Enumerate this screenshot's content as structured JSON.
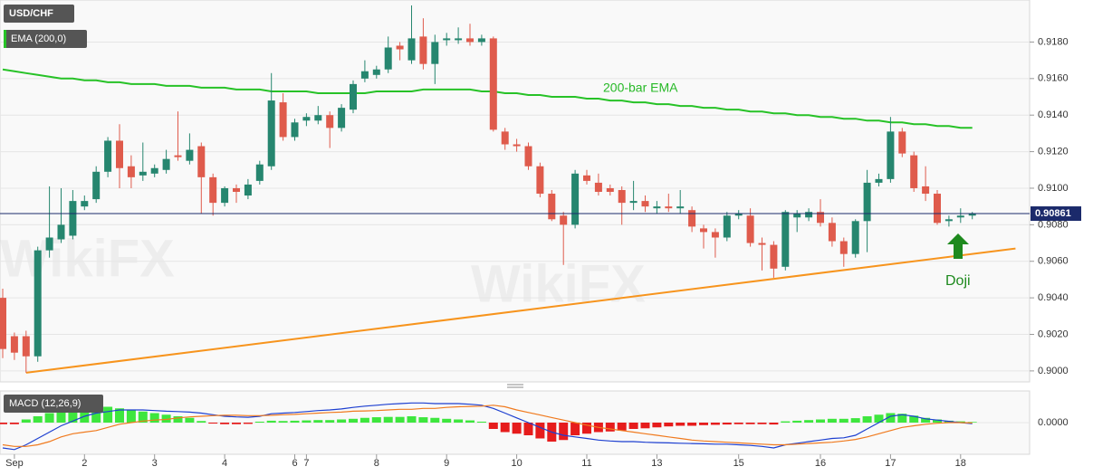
{
  "chart_data": {
    "type": "candlestick",
    "symbol": "USD/CHF",
    "indicator_label": "EMA (200,0)",
    "ema_annotation": "200-bar EMA",
    "doji_annotation": "Doji",
    "watermark": "WikiFX",
    "current_price": 0.90861,
    "categories": [
      null,
      "Sep",
      null,
      null,
      null,
      null,
      null,
      "2",
      null,
      null,
      null,
      null,
      null,
      "3",
      null,
      null,
      null,
      null,
      null,
      "4",
      null,
      null,
      null,
      null,
      null,
      "6",
      "7",
      null,
      null,
      null,
      null,
      null,
      "8",
      null,
      null,
      null,
      null,
      null,
      "9",
      null,
      null,
      null,
      null,
      null,
      "10",
      null,
      null,
      null,
      null,
      null,
      "11",
      null,
      null,
      null,
      null,
      null,
      "13",
      null,
      null,
      null,
      null,
      null,
      null,
      "15",
      null,
      null,
      null,
      null,
      null,
      null,
      "16",
      null,
      null,
      null,
      null,
      null,
      "17",
      null,
      null,
      null,
      null,
      null,
      "18",
      null
    ],
    "open": [
      0.904,
      0.9019,
      0.9019,
      0.9008,
      0.9066,
      0.9072,
      0.9074,
      0.909,
      0.9094,
      0.9109,
      0.9126,
      0.9112,
      0.9107,
      0.9108,
      0.911,
      0.9118,
      0.9115,
      0.9123,
      0.9106,
      0.9092,
      0.91,
      0.9096,
      0.9104,
      0.9112,
      0.9147,
      0.9128,
      0.9137,
      0.9137,
      0.914,
      0.9133,
      0.9143,
      0.916,
      0.9162,
      0.9165,
      0.9178,
      0.917,
      0.9183,
      0.9168,
      0.9181,
      0.9181,
      0.9182,
      0.918,
      0.9182,
      0.9131,
      0.9124,
      0.9123,
      0.9112,
      0.9097,
      0.9085,
      0.908,
      0.9107,
      0.9103,
      0.91,
      0.9099,
      0.9092,
      0.9093,
      0.9089,
      0.909,
      0.9089,
      0.9088,
      0.9078,
      0.9076,
      0.9073,
      0.9085,
      0.9085,
      0.907,
      0.9069,
      0.9057,
      0.9084,
      0.9084,
      0.9087,
      0.9081,
      0.9071,
      0.9064,
      0.9082,
      0.9103,
      0.9105,
      0.9131,
      0.9118,
      0.9101,
      0.9097,
      0.9082,
      0.9084,
      0.9085
    ],
    "high": [
      0.9045,
      0.9021,
      0.9022,
      0.9068,
      0.9101,
      0.91,
      0.9099,
      0.9096,
      0.9112,
      0.9128,
      0.9135,
      0.9118,
      0.9125,
      0.9113,
      0.9121,
      0.9142,
      0.913,
      0.9125,
      0.9108,
      0.9101,
      0.9102,
      0.9105,
      0.9115,
      0.9163,
      0.9152,
      0.9138,
      0.9141,
      0.9145,
      0.9142,
      0.9146,
      0.9159,
      0.917,
      0.9167,
      0.9183,
      0.918,
      0.92,
      0.9193,
      0.9184,
      0.9185,
      0.9188,
      0.919,
      0.9184,
      0.9183,
      0.9133,
      0.9127,
      0.9125,
      0.9114,
      0.9099,
      0.9087,
      0.911,
      0.911,
      0.9108,
      0.9102,
      0.9101,
      0.9104,
      0.9096,
      0.9093,
      0.9097,
      0.9099,
      0.909,
      0.908,
      0.9078,
      0.9087,
      0.9088,
      0.9089,
      0.9073,
      0.9071,
      0.9088,
      0.9088,
      0.9089,
      0.9094,
      0.9084,
      0.9073,
      0.9083,
      0.911,
      0.9108,
      0.9139,
      0.9133,
      0.912,
      0.9112,
      0.9099,
      0.9085,
      0.9089,
      0.9087
    ],
    "low": [
      0.9007,
      0.9006,
      0.8999,
      0.9005,
      0.9062,
      0.907,
      0.9072,
      0.9088,
      0.9092,
      0.9106,
      0.91,
      0.91,
      0.9104,
      0.9106,
      0.9108,
      0.9115,
      0.9113,
      0.9086,
      0.9085,
      0.909,
      0.9092,
      0.9094,
      0.9102,
      0.911,
      0.9126,
      0.9126,
      0.9134,
      0.9135,
      0.9122,
      0.9131,
      0.9141,
      0.9158,
      0.916,
      0.9163,
      0.917,
      0.9168,
      0.9165,
      0.9157,
      0.9178,
      0.9179,
      0.9178,
      0.9178,
      0.9131,
      0.9121,
      0.912,
      0.911,
      0.9095,
      0.9082,
      0.9058,
      0.9078,
      0.9102,
      0.9096,
      0.9096,
      0.908,
      0.9088,
      0.9087,
      0.9086,
      0.9087,
      0.9086,
      0.9076,
      0.9067,
      0.9062,
      0.9071,
      0.9083,
      0.9068,
      0.9055,
      0.9051,
      0.9055,
      0.9076,
      0.9082,
      0.9079,
      0.9068,
      0.9057,
      0.9062,
      0.9065,
      0.9101,
      0.9103,
      0.9117,
      0.9098,
      0.9093,
      0.908,
      0.9079,
      0.9081,
      0.9083
    ],
    "close": [
      0.9012,
      0.901,
      0.9008,
      0.9066,
      0.9073,
      0.908,
      0.9093,
      0.9093,
      0.9109,
      0.9126,
      0.9111,
      0.9106,
      0.9109,
      0.9111,
      0.9116,
      0.9117,
      0.9121,
      0.9106,
      0.9092,
      0.91,
      0.9098,
      0.9102,
      0.9113,
      0.9148,
      0.9128,
      0.9136,
      0.9139,
      0.914,
      0.9133,
      0.9144,
      0.9157,
      0.9164,
      0.9165,
      0.9177,
      0.9176,
      0.9182,
      0.9168,
      0.918,
      0.9182,
      0.9182,
      0.918,
      0.9182,
      0.9132,
      0.9124,
      0.9123,
      0.9112,
      0.9097,
      0.9083,
      0.908,
      0.9108,
      0.9104,
      0.9098,
      0.9098,
      0.9092,
      0.9093,
      0.909,
      0.909,
      0.9089,
      0.909,
      0.9079,
      0.9076,
      0.9073,
      0.9085,
      0.9086,
      0.907,
      0.9069,
      0.9056,
      0.9087,
      0.9086,
      0.9087,
      0.9081,
      0.9071,
      0.9064,
      0.9082,
      0.9103,
      0.9105,
      0.9131,
      0.9119,
      0.91,
      0.9097,
      0.9081,
      0.9083,
      0.9085,
      0.9086
    ],
    "up_color": "#26866f",
    "down_color": "#df5b4c",
    "ema": {
      "color": "#27c227",
      "values": [
        0.9165,
        0.9164,
        0.9163,
        0.9162,
        0.9161,
        0.916,
        0.916,
        0.9159,
        0.9159,
        0.9158,
        0.9158,
        0.9157,
        0.9157,
        0.9157,
        0.9156,
        0.9156,
        0.9156,
        0.9155,
        0.9155,
        0.9155,
        0.9154,
        0.9154,
        0.9154,
        0.9153,
        0.9153,
        0.9153,
        0.9153,
        0.9152,
        0.9152,
        0.9152,
        0.9152,
        0.9152,
        0.9153,
        0.9153,
        0.9153,
        0.9153,
        0.9154,
        0.9154,
        0.9154,
        0.9154,
        0.9154,
        0.9153,
        0.9153,
        0.9152,
        0.9152,
        0.9151,
        0.9151,
        0.915,
        0.915,
        0.915,
        0.9149,
        0.9149,
        0.9148,
        0.9148,
        0.9147,
        0.9147,
        0.9146,
        0.9146,
        0.9145,
        0.9145,
        0.9144,
        0.9144,
        0.9143,
        0.9143,
        0.9142,
        0.9142,
        0.9141,
        0.9141,
        0.914,
        0.914,
        0.9139,
        0.9139,
        0.9138,
        0.9138,
        0.9137,
        0.9137,
        0.9136,
        0.9136,
        0.9135,
        0.9135,
        0.9134,
        0.9134,
        0.9133,
        0.9133
      ]
    },
    "trendline": {
      "color": "#f7941d",
      "x": [
        2,
        86.7
      ],
      "values": [
        0.8999,
        0.9067
      ]
    },
    "ylim": [
      0.8994,
      0.9203
    ],
    "yticks": [
      {
        "value": 0.9,
        "label": "0.9000"
      },
      {
        "value": 0.902,
        "label": "0.9020"
      },
      {
        "value": 0.904,
        "label": "0.9040"
      },
      {
        "value": 0.906,
        "label": "0.9060"
      },
      {
        "value": 0.908,
        "label": "0.9080"
      },
      {
        "value": 0.91,
        "label": "0.9100"
      },
      {
        "value": 0.912,
        "label": "0.9120"
      },
      {
        "value": 0.914,
        "label": "0.9140"
      },
      {
        "value": 0.916,
        "label": "0.9160"
      },
      {
        "value": 0.918,
        "label": "0.9180"
      }
    ],
    "grid": true,
    "macd": {
      "label": "MACD (12,26,9)",
      "ylim": [
        -0.001,
        0.001
      ],
      "yticks": [
        {
          "value": 0,
          "label": "0.0000"
        }
      ],
      "pos_color": "#3ee63e",
      "neg_color": "#e61c1c",
      "line_color": "#1d3fd0",
      "signal_color": "#f07a1e",
      "histogram": [
        -5e-05,
        -5e-05,
        0.0001,
        0.0002,
        0.0003,
        0.00035,
        0.0004,
        0.0005,
        0.00055,
        0.0005,
        0.00045,
        0.0004,
        0.00035,
        0.0003,
        0.00025,
        0.0002,
        0.00015,
        5e-05,
        -3e-05,
        -5e-05,
        -5e-05,
        -4e-05,
        3e-05,
        6e-05,
        5e-05,
        6e-05,
        7e-05,
        8e-05,
        8e-05,
        0.0001,
        0.00012,
        0.00015,
        0.00017,
        0.00018,
        0.00018,
        0.0002,
        0.00017,
        0.00015,
        0.00012,
        0.0001,
        7e-05,
        3e-05,
        -0.0002,
        -0.0003,
        -0.00035,
        -0.0004,
        -0.0005,
        -0.0006,
        -0.00055,
        -0.0004,
        -0.00035,
        -0.0003,
        -0.00028,
        -0.00025,
        -0.0002,
        -0.00018,
        -0.00015,
        -0.00012,
        -0.0001,
        -0.0001,
        -8e-05,
        -7e-05,
        -6e-05,
        -5e-05,
        -5e-05,
        -5e-05,
        -6e-05,
        4e-05,
        6e-05,
        8e-05,
        0.0001,
        0.00012,
        0.00012,
        0.00014,
        0.0002,
        0.00025,
        0.0003,
        0.00028,
        0.00022,
        0.00015,
        0.0001,
        6e-05,
        4e-05,
        2e-05
      ],
      "line": [
        -0.0008,
        -0.00085,
        -0.0007,
        -0.0005,
        -0.0003,
        -0.0001,
        5e-05,
        0.0002,
        0.0003,
        0.00035,
        0.0004,
        0.0004,
        0.0004,
        0.00038,
        0.00036,
        0.00035,
        0.00033,
        0.0003,
        0.00025,
        0.0002,
        0.00018,
        0.00017,
        0.0002,
        0.00028,
        0.0003,
        0.00032,
        0.00035,
        0.00038,
        0.0004,
        0.00043,
        0.00048,
        0.00052,
        0.00055,
        0.00058,
        0.0006,
        0.00062,
        0.00062,
        0.0006,
        0.0006,
        0.0006,
        0.00058,
        0.00055,
        0.00045,
        0.0003,
        0.00015,
        0.0,
        -0.00015,
        -0.0003,
        -0.0004,
        -0.00045,
        -0.0005,
        -0.00055,
        -0.00058,
        -0.0006,
        -0.0006,
        -0.00062,
        -0.00063,
        -0.00064,
        -0.00065,
        -0.00066,
        -0.00067,
        -0.00068,
        -0.00068,
        -0.0007,
        -0.00072,
        -0.00075,
        -0.0008,
        -0.0007,
        -0.00065,
        -0.0006,
        -0.00055,
        -0.0005,
        -0.00048,
        -0.0004,
        -0.0002,
        0.0,
        0.0002,
        0.00025,
        0.0002,
        0.00012,
        8e-05,
        4e-05,
        0.0,
        -3e-05
      ],
      "signal": [
        -0.0007,
        -0.00075,
        -0.00075,
        -0.0007,
        -0.0006,
        -0.00045,
        -0.00035,
        -0.0003,
        -0.00025,
        -0.00015,
        -5e-05,
        0.0,
        5e-05,
        8e-05,
        0.0001,
        0.00015,
        0.00018,
        0.0002,
        0.00022,
        0.00023,
        0.00023,
        0.00022,
        0.00022,
        0.00023,
        0.00025,
        0.00026,
        0.00028,
        0.0003,
        0.00032,
        0.00033,
        0.00036,
        0.00037,
        0.00038,
        0.0004,
        0.00042,
        0.00042,
        0.00045,
        0.00045,
        0.00048,
        0.0005,
        0.00051,
        0.00052,
        0.00055,
        0.0005,
        0.0004,
        0.00032,
        0.00024,
        0.00016,
        8e-05,
        0.0,
        -8e-05,
        -0.00015,
        -0.0002,
        -0.00025,
        -0.0003,
        -0.00035,
        -0.0004,
        -0.00045,
        -0.0005,
        -0.00055,
        -0.00058,
        -0.0006,
        -0.00062,
        -0.00064,
        -0.00066,
        -0.00068,
        -0.0007,
        -0.0007,
        -0.00068,
        -0.00066,
        -0.00064,
        -0.00062,
        -0.00058,
        -0.00053,
        -0.00045,
        -0.00035,
        -0.00025,
        -0.00015,
        -0.0001,
        -5e-05,
        -2e-05,
        0.0,
        0.0,
        -1e-05
      ]
    }
  }
}
